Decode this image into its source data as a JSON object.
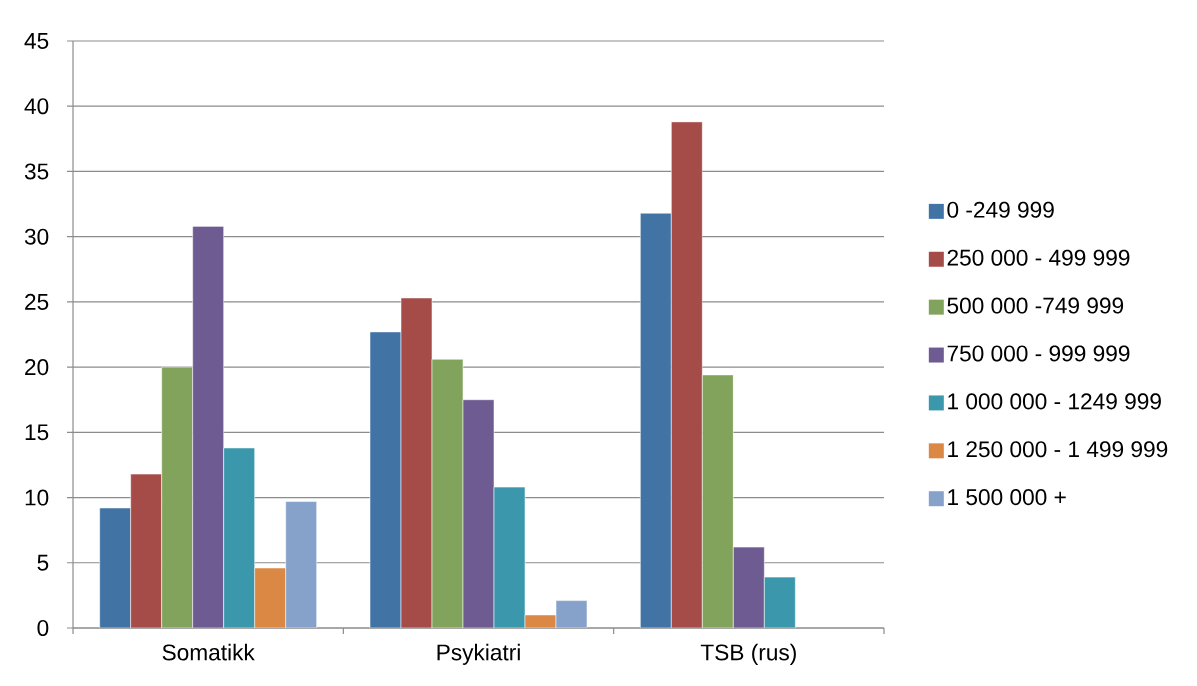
{
  "chart_data": {
    "type": "bar",
    "categories": [
      "Somatikk",
      "Psykiatri",
      "TSB (rus)"
    ],
    "series": [
      {
        "name": "0 -249 999",
        "color": "#4173a5",
        "values": [
          9.2,
          22.7,
          31.8
        ]
      },
      {
        "name": "250 000 - 499 999",
        "color": "#a54b48",
        "values": [
          11.8,
          25.3,
          38.8
        ]
      },
      {
        "name": "500 000 -749 999",
        "color": "#82a35b",
        "values": [
          20.0,
          20.6,
          19.4
        ]
      },
      {
        "name": "750 000 - 999 999",
        "color": "#6e5b91",
        "values": [
          30.8,
          17.5,
          6.2
        ]
      },
      {
        "name": "1 000 000 - 1249 999",
        "color": "#3b97ac",
        "values": [
          13.8,
          10.8,
          3.9
        ]
      },
      {
        "name": "1 250 000 - 1 499 999",
        "color": "#da8844",
        "values": [
          4.6,
          1.0,
          null
        ]
      },
      {
        "name": "1 500 000 +",
        "color": "#87a2ca",
        "values": [
          9.7,
          2.1,
          null
        ]
      }
    ],
    "ylim": [
      0,
      45
    ],
    "yticks": [
      0,
      5,
      10,
      15,
      20,
      25,
      30,
      35,
      40,
      45
    ],
    "grid": "y",
    "legend": "right"
  }
}
